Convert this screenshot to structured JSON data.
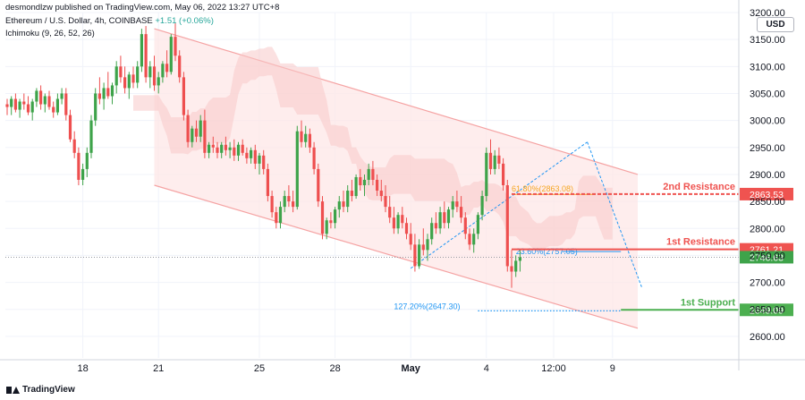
{
  "header": {
    "publisher": "desmondlzw published on TradingView.com, May 06, 2022 13:27 UTC+8",
    "symbol": "Ethereum / U.S. Dollar, 4h, COINBASE",
    "change": "+1.51 (+0.06%)",
    "indicator": "Ichimoku (9, 26, 52, 26)"
  },
  "currency": "USD",
  "brand": "TradingView",
  "colors": {
    "up": "#26a69a",
    "upBody": "#3ea34a",
    "down": "#ef5350",
    "downBody": "#ee4f4f",
    "cloud": "#f8c9c9",
    "channel": "#f5a3a3",
    "channelFill": "#fde7e7",
    "resistance": "#ef5350",
    "support": "#4caf50",
    "fib": "#2196f3",
    "fibOrange": "#f5a623"
  },
  "chart_data": {
    "type": "candlestick",
    "ylim": [
      2560,
      3200
    ],
    "y_ticks": [
      2600,
      2650,
      2700,
      2750,
      2800,
      2850,
      2900,
      2950,
      3000,
      3050,
      3100,
      3150,
      3200
    ],
    "y_tick_labels": [
      "2600.00",
      "2650.00",
      "2700.00",
      "2750.00",
      "2800.00",
      "2850.00",
      "2900.00",
      "2950.00",
      "3000.00",
      "3050.00",
      "3100.00",
      "3150.00",
      "3200.00"
    ],
    "x_ticks": [
      {
        "label": "18",
        "bar": 18
      },
      {
        "label": "21",
        "bar": 36
      },
      {
        "label": "25",
        "bar": 60
      },
      {
        "label": "28",
        "bar": 78
      },
      {
        "label": "May",
        "bar": 96
      },
      {
        "label": "4",
        "bar": 114
      },
      {
        "label": "12:00",
        "bar": 130
      },
      {
        "label": "9",
        "bar": 144
      }
    ],
    "n_bars": 156,
    "candles": [
      [
        3030,
        3040,
        3010,
        3025
      ],
      [
        3025,
        3045,
        3010,
        3040
      ],
      [
        3040,
        3050,
        3015,
        3020
      ],
      [
        3020,
        3040,
        3005,
        3035
      ],
      [
        3035,
        3050,
        3020,
        3030
      ],
      [
        3030,
        3045,
        3010,
        3015
      ],
      [
        3015,
        3040,
        3000,
        3035
      ],
      [
        3035,
        3060,
        3025,
        3055
      ],
      [
        3055,
        3065,
        3020,
        3030
      ],
      [
        3030,
        3050,
        3015,
        3045
      ],
      [
        3045,
        3055,
        3020,
        3025
      ],
      [
        3025,
        3035,
        3005,
        3015
      ],
      [
        3015,
        3050,
        3010,
        3040
      ],
      [
        3040,
        3060,
        3030,
        3050
      ],
      [
        3050,
        3060,
        3000,
        3010
      ],
      [
        3010,
        3020,
        2960,
        2965
      ],
      [
        2965,
        2980,
        2930,
        2940
      ],
      [
        2940,
        2950,
        2880,
        2890
      ],
      [
        2890,
        2920,
        2880,
        2910
      ],
      [
        2910,
        2950,
        2895,
        2940
      ],
      [
        2940,
        3010,
        2930,
        3000
      ],
      [
        3000,
        3060,
        2990,
        3050
      ],
      [
        3050,
        3080,
        3030,
        3040
      ],
      [
        3040,
        3070,
        3020,
        3060
      ],
      [
        3060,
        3090,
        3040,
        3045
      ],
      [
        3045,
        3070,
        3030,
        3065
      ],
      [
        3065,
        3110,
        3050,
        3100
      ],
      [
        3100,
        3120,
        3070,
        3080
      ],
      [
        3080,
        3100,
        3050,
        3060
      ],
      [
        3060,
        3090,
        3040,
        3085
      ],
      [
        3085,
        3100,
        3060,
        3070
      ],
      [
        3070,
        3110,
        3060,
        3100
      ],
      [
        3100,
        3170,
        3090,
        3160
      ],
      [
        3160,
        3175,
        3070,
        3080
      ],
      [
        3080,
        3110,
        3060,
        3100
      ],
      [
        3100,
        3120,
        3055,
        3065
      ],
      [
        3065,
        3090,
        3050,
        3080
      ],
      [
        3080,
        3110,
        3070,
        3105
      ],
      [
        3105,
        3130,
        3080,
        3090
      ],
      [
        3090,
        3160,
        3085,
        3155
      ],
      [
        3155,
        3180,
        3110,
        3120
      ],
      [
        3120,
        3130,
        3070,
        3080
      ],
      [
        3080,
        3090,
        3000,
        3010
      ],
      [
        3010,
        3020,
        2950,
        2960
      ],
      [
        2960,
        2990,
        2950,
        2985
      ],
      [
        2985,
        3000,
        2960,
        2970
      ],
      [
        2970,
        3010,
        2960,
        3000
      ],
      [
        3000,
        3020,
        2930,
        2940
      ],
      [
        2940,
        2960,
        2930,
        2955
      ],
      [
        2955,
        2970,
        2940,
        2950
      ],
      [
        2950,
        2960,
        2930,
        2940
      ],
      [
        2940,
        2960,
        2930,
        2955
      ],
      [
        2955,
        2970,
        2935,
        2945
      ],
      [
        2945,
        2960,
        2930,
        2950
      ],
      [
        2950,
        2965,
        2925,
        2935
      ],
      [
        2935,
        2960,
        2925,
        2955
      ],
      [
        2955,
        2965,
        2935,
        2940
      ],
      [
        2940,
        2950,
        2920,
        2930
      ],
      [
        2930,
        2950,
        2920,
        2945
      ],
      [
        2945,
        2955,
        2910,
        2920
      ],
      [
        2920,
        2940,
        2900,
        2935
      ],
      [
        2935,
        2945,
        2900,
        2910
      ],
      [
        2910,
        2920,
        2850,
        2860
      ],
      [
        2860,
        2870,
        2820,
        2830
      ],
      [
        2830,
        2840,
        2800,
        2810
      ],
      [
        2810,
        2850,
        2800,
        2840
      ],
      [
        2840,
        2870,
        2830,
        2860
      ],
      [
        2860,
        2880,
        2840,
        2850
      ],
      [
        2850,
        2870,
        2830,
        2840
      ],
      [
        2840,
        2990,
        2835,
        2980
      ],
      [
        2980,
        3000,
        2950,
        2960
      ],
      [
        2960,
        2990,
        2950,
        2975
      ],
      [
        2975,
        2985,
        2940,
        2950
      ],
      [
        2950,
        2960,
        2900,
        2910
      ],
      [
        2910,
        2920,
        2840,
        2850
      ],
      [
        2850,
        2860,
        2780,
        2790
      ],
      [
        2790,
        2820,
        2780,
        2815
      ],
      [
        2815,
        2830,
        2800,
        2810
      ],
      [
        2810,
        2840,
        2800,
        2835
      ],
      [
        2835,
        2860,
        2820,
        2850
      ],
      [
        2850,
        2870,
        2830,
        2840
      ],
      [
        2840,
        2880,
        2830,
        2870
      ],
      [
        2870,
        2890,
        2850,
        2860
      ],
      [
        2860,
        2900,
        2855,
        2895
      ],
      [
        2895,
        2910,
        2870,
        2880
      ],
      [
        2880,
        2900,
        2860,
        2890
      ],
      [
        2890,
        2920,
        2880,
        2910
      ],
      [
        2910,
        2925,
        2880,
        2890
      ],
      [
        2890,
        2900,
        2860,
        2870
      ],
      [
        2870,
        2890,
        2850,
        2860
      ],
      [
        2860,
        2880,
        2830,
        2840
      ],
      [
        2840,
        2860,
        2810,
        2820
      ],
      [
        2820,
        2840,
        2790,
        2800
      ],
      [
        2800,
        2830,
        2790,
        2825
      ],
      [
        2825,
        2840,
        2800,
        2810
      ],
      [
        2810,
        2820,
        2780,
        2790
      ],
      [
        2790,
        2810,
        2760,
        2770
      ],
      [
        2770,
        2790,
        2720,
        2730
      ],
      [
        2730,
        2780,
        2725,
        2770
      ],
      [
        2770,
        2800,
        2750,
        2760
      ],
      [
        2760,
        2790,
        2740,
        2780
      ],
      [
        2780,
        2820,
        2770,
        2810
      ],
      [
        2810,
        2830,
        2790,
        2800
      ],
      [
        2800,
        2840,
        2790,
        2830
      ],
      [
        2830,
        2850,
        2800,
        2810
      ],
      [
        2810,
        2840,
        2800,
        2835
      ],
      [
        2835,
        2860,
        2820,
        2850
      ],
      [
        2850,
        2870,
        2830,
        2840
      ],
      [
        2840,
        2860,
        2810,
        2820
      ],
      [
        2820,
        2830,
        2780,
        2790
      ],
      [
        2790,
        2800,
        2760,
        2770
      ],
      [
        2770,
        2800,
        2755,
        2790
      ],
      [
        2790,
        2830,
        2780,
        2825
      ],
      [
        2825,
        2870,
        2815,
        2860
      ],
      [
        2860,
        2950,
        2850,
        2940
      ],
      [
        2940,
        2965,
        2900,
        2910
      ],
      [
        2910,
        2945,
        2900,
        2935
      ],
      [
        2935,
        2950,
        2910,
        2920
      ],
      [
        2920,
        2930,
        2870,
        2880
      ],
      [
        2880,
        2890,
        2720,
        2730
      ],
      [
        2730,
        2760,
        2690,
        2720
      ],
      [
        2720,
        2750,
        2710,
        2740
      ],
      [
        2740,
        2760,
        2720,
        2746.63
      ]
    ],
    "channel_upper": [
      {
        "bar": 35,
        "y": 3170
      },
      {
        "bar": 150,
        "y": 2900
      }
    ],
    "channel_lower": [
      {
        "bar": 35,
        "y": 2880
      },
      {
        "bar": 150,
        "y": 2615
      }
    ],
    "horizontal_lines": [
      {
        "label": "2nd Resistance",
        "value": 2863.53,
        "value_label": "2863.53",
        "kind": "resistance"
      },
      {
        "label": "1st Resistance",
        "value": 2761.21,
        "value_label": "2761.21",
        "kind": "resistance"
      },
      {
        "label": "1st Support",
        "value": 2649.09,
        "value_label": "2649.09",
        "kind": "support"
      }
    ],
    "last_price": {
      "value": 2746.63,
      "label": "2746.63"
    },
    "fib_labels": [
      {
        "text": "61.80%(2863.08)",
        "value": 2863.08
      },
      {
        "text": "23.60%(2757.05)",
        "value": 2757.05
      },
      {
        "text": "127.20%(2647.30)",
        "value": 2647.3
      }
    ]
  }
}
